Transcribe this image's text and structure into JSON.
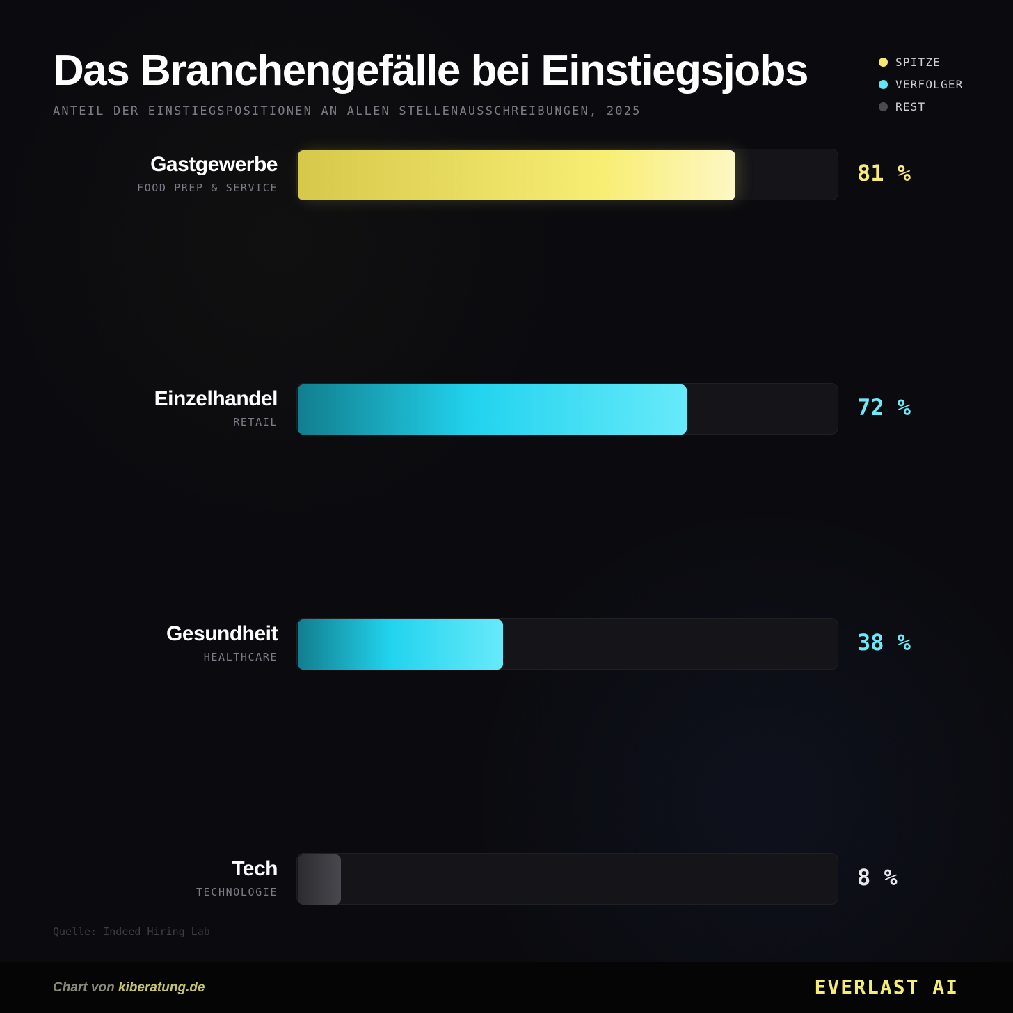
{
  "chart_data": {
    "type": "bar",
    "orientation": "horizontal",
    "title": "Das Branchengefälle bei Einstiegsjobs",
    "subtitle": "ANTEIL DER EINSTIEGSPOSITIONEN AN ALLEN STELLENAUSSCHREIBUNGEN, 2025",
    "xlim": [
      0,
      100
    ],
    "value_suffix": " %",
    "legend_position": "top-right",
    "legend": [
      {
        "label": "SPITZE",
        "color": "#f7e96a"
      },
      {
        "label": "VERFOLGER",
        "color": "#5ee6f7"
      },
      {
        "label": "REST",
        "color": "#4a4a50"
      }
    ],
    "categories": [
      "Gastgewerbe",
      "Einzelhandel",
      "Gesundheit",
      "Tech"
    ],
    "subcategories": [
      "FOOD PREP & SERVICE",
      "RETAIL",
      "HEALTHCARE",
      "TECHNOLOGIE"
    ],
    "values": [
      81,
      72,
      38,
      8
    ],
    "groups": [
      "SPITZE",
      "VERFOLGER",
      "VERFOLGER",
      "REST"
    ],
    "value_labels": [
      "81 %",
      "72 %",
      "38 %",
      "8 %"
    ],
    "source": "Quelle: Indeed Hiring Lab"
  },
  "colors": {
    "spitze_gradient": [
      "#d6c84a",
      "#f8ee74",
      "#fdf7c4"
    ],
    "verfolger_gradient": [
      "#117e8e",
      "#22d3ee",
      "#67eafa"
    ],
    "rest_gradient": [
      "#2b2b30",
      "#48484e"
    ],
    "spitze_text": "#f7ea79",
    "verfolger_text": "#6fe8f8",
    "rest_text": "#e8e8ec"
  },
  "footer": {
    "credit_prefix": "Chart von ",
    "credit_link": "kiberatung.de",
    "brand": "EVERLAST AI"
  }
}
